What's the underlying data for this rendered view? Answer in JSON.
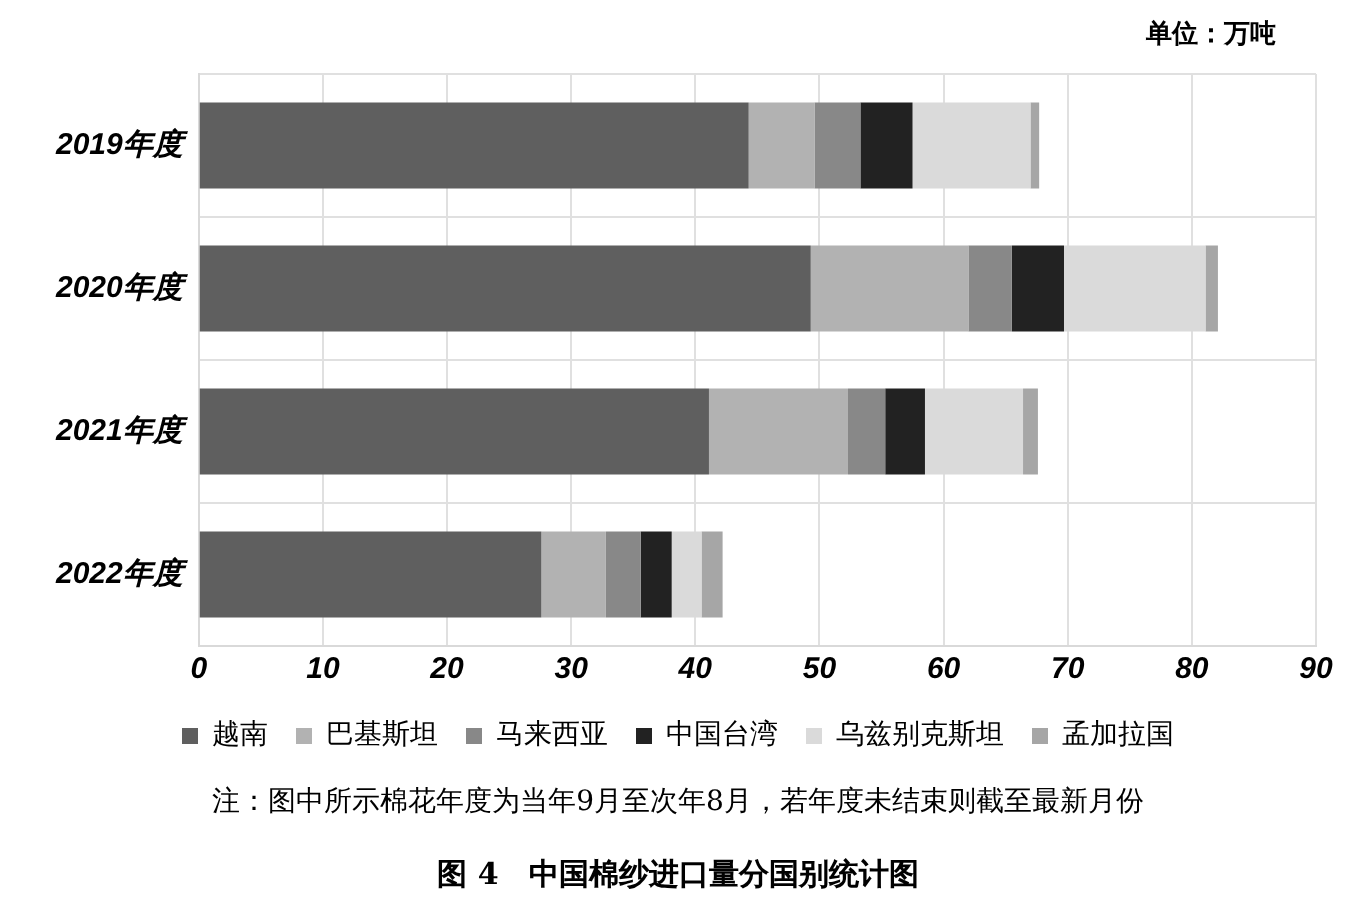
{
  "chart_data": {
    "type": "bar",
    "orientation": "horizontal",
    "stacked": true,
    "title": "图 4　中国棉纱进口量分国别统计图",
    "annotations": [
      "单位：万吨",
      "注：图中所示棉花年度为当年9月至次年8月，若年度未结束则截至最新月份"
    ],
    "categories": [
      "2019年度",
      "2020年度",
      "2021年度",
      "2022年度"
    ],
    "series": [
      {
        "name": "越南",
        "color": "#5f5f5f",
        "values": [
          44.3,
          49.3,
          41.1,
          27.6
        ]
      },
      {
        "name": "巴基斯坦",
        "color": "#b2b2b2",
        "values": [
          5.3,
          12.7,
          11.2,
          5.2
        ]
      },
      {
        "name": "马来西亚",
        "color": "#888888",
        "values": [
          3.7,
          3.5,
          3.0,
          2.8
        ]
      },
      {
        "name": "中国台湾",
        "color": "#222222",
        "values": [
          4.2,
          4.2,
          3.2,
          2.5
        ]
      },
      {
        "name": "乌兹别克斯坦",
        "color": "#dadada",
        "values": [
          9.5,
          11.4,
          7.9,
          2.4
        ]
      },
      {
        "name": "孟加拉国",
        "color": "#a6a6a6",
        "values": [
          0.7,
          1.0,
          1.2,
          1.7
        ]
      }
    ],
    "xlim": [
      0,
      90
    ],
    "xticks": [
      0,
      10,
      20,
      30,
      40,
      50,
      60,
      70,
      80,
      90
    ],
    "grid": true,
    "legend": "bottom"
  }
}
